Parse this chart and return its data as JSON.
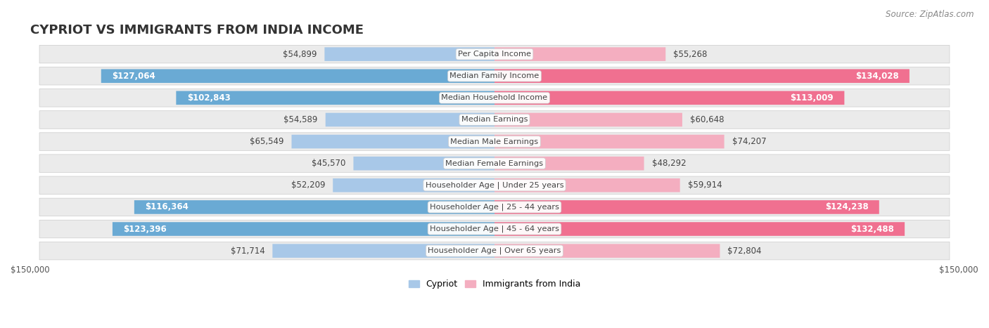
{
  "title": "CYPRIOT VS IMMIGRANTS FROM INDIA INCOME",
  "source": "Source: ZipAtlas.com",
  "categories": [
    "Per Capita Income",
    "Median Family Income",
    "Median Household Income",
    "Median Earnings",
    "Median Male Earnings",
    "Median Female Earnings",
    "Householder Age | Under 25 years",
    "Householder Age | 25 - 44 years",
    "Householder Age | 45 - 64 years",
    "Householder Age | Over 65 years"
  ],
  "cypriot_values": [
    54899,
    127064,
    102843,
    54589,
    65549,
    45570,
    52209,
    116364,
    123396,
    71714
  ],
  "india_values": [
    55268,
    134028,
    113009,
    60648,
    74207,
    48292,
    59914,
    124238,
    132488,
    72804
  ],
  "cypriot_labels": [
    "$54,899",
    "$127,064",
    "$102,843",
    "$54,589",
    "$65,549",
    "$45,570",
    "$52,209",
    "$116,364",
    "$123,396",
    "$71,714"
  ],
  "india_labels": [
    "$55,268",
    "$134,028",
    "$113,009",
    "$60,648",
    "$74,207",
    "$48,292",
    "$59,914",
    "$124,238",
    "$132,488",
    "$72,804"
  ],
  "max_value": 150000,
  "cypriot_color_light": "#a8c8e8",
  "cypriot_color_dark": "#6aaad4",
  "india_color_light": "#f4aec0",
  "india_color_dark": "#f07090",
  "row_bg": "#ebebeb",
  "bar_height": 0.62,
  "title_fontsize": 13,
  "label_fontsize": 8.5,
  "axis_fontsize": 9,
  "legend_fontsize": 9,
  "inside_threshold": 80000
}
